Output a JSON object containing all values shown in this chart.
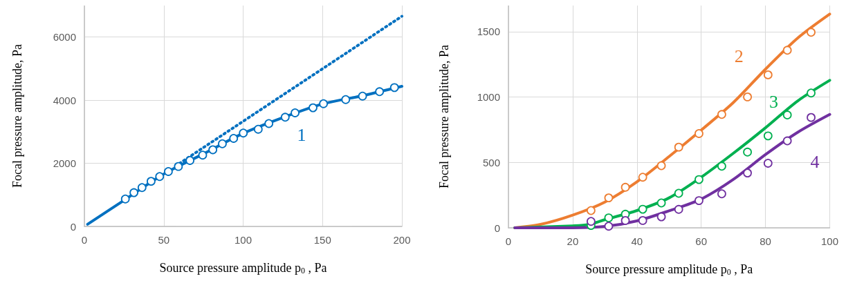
{
  "chart_data": [
    {
      "type": "line",
      "xlabel": "Source pressure amplitude p$_{0}$ , Pa",
      "ylabel": "Focal pressure amplitude, Pa",
      "xlim": [
        0,
        200
      ],
      "xticks": [
        0,
        50,
        100,
        150,
        200
      ],
      "ylim": [
        0,
        7000
      ],
      "yticks": [
        0,
        2000,
        4000,
        6000
      ],
      "grid": true,
      "series": [
        {
          "name": "1",
          "color": "#0070c0",
          "marker": "none",
          "line_style": "solid",
          "x": [
            2,
            25,
            50,
            75,
            100,
            125,
            150,
            175,
            200
          ],
          "values": [
            70,
            830,
            1660,
            2300,
            2950,
            3450,
            3880,
            4140,
            4440
          ]
        },
        {
          "color": "#0070c0",
          "marker": "none",
          "line_style": "dotted",
          "x": [
            60,
            200
          ],
          "values": [
            2000,
            6660
          ]
        },
        {
          "type": "scatter",
          "color": "#0070c0",
          "marker": "circle",
          "x": [
            25.8,
            31.2,
            36.3,
            42,
            47.4,
            52.9,
            59.2,
            66.5,
            74.5,
            80.9,
            86.9,
            94,
            100.1,
            109.5,
            116.2,
            126.5,
            132.7,
            144,
            150.6,
            164.6,
            175.2,
            185.9,
            195.3
          ],
          "values": [
            870,
            1070,
            1230,
            1430,
            1580,
            1740,
            1900,
            2090,
            2260,
            2430,
            2620,
            2790,
            2960,
            3080,
            3260,
            3460,
            3600,
            3760,
            3890,
            4020,
            4130,
            4270,
            4400
          ]
        }
      ]
    },
    {
      "type": "line",
      "xlabel": "Source pressure amplitude p$_{0}$ , Pa",
      "ylabel": "Focal pressure amplitude, Pa",
      "xlim": [
        0,
        100
      ],
      "xticks": [
        0,
        20,
        40,
        60,
        80,
        100
      ],
      "ylim": [
        0,
        1700
      ],
      "yticks": [
        0,
        500,
        1000,
        1500
      ],
      "grid": true,
      "series": [
        {
          "name": "2",
          "color": "#ed7d31",
          "marker": "none",
          "line_style": "solid",
          "x": [
            2,
            10,
            20,
            30,
            40,
            50,
            60,
            70,
            80,
            90,
            100
          ],
          "values": [
            0,
            26,
            97,
            197,
            352,
            545,
            747,
            958,
            1213,
            1451,
            1635
          ]
        },
        {
          "type": "scatter",
          "color": "#ed7d31",
          "marker": "circle",
          "x": [
            25.7,
            31.2,
            36.4,
            41.8,
            47.6,
            53,
            59.3,
            66.4,
            74.4,
            80.8,
            86.8,
            94.2
          ],
          "values": [
            132,
            229,
            310,
            387,
            475,
            617,
            721,
            867,
            1001,
            1170,
            1358,
            1495
          ]
        },
        {
          "name": "3",
          "color": "#00b050",
          "marker": "none",
          "line_style": "solid",
          "x": [
            2,
            20,
            25,
            30,
            40,
            50,
            60,
            70,
            80,
            90,
            100
          ],
          "values": [
            0,
            15,
            25,
            62,
            132,
            229,
            387,
            570,
            765,
            970,
            1128
          ]
        },
        {
          "type": "scatter",
          "color": "#00b050",
          "marker": "circle",
          "x": [
            25.7,
            31.2,
            36.4,
            41.8,
            47.6,
            53,
            59.3,
            66.4,
            74.4,
            80.8,
            86.8,
            94.2
          ],
          "values": [
            18,
            76,
            104,
            142,
            190,
            264,
            369,
            471,
            579,
            703,
            863,
            1031
          ]
        },
        {
          "name": "4",
          "color": "#7030a0",
          "marker": "none",
          "line_style": "solid",
          "x": [
            2,
            20,
            30,
            40,
            50,
            60,
            70,
            80,
            90,
            100
          ],
          "values": [
            0,
            0,
            10,
            53,
            130,
            220,
            370,
            560,
            730,
            867
          ]
        },
        {
          "type": "scatter",
          "color": "#7030a0",
          "marker": "circle",
          "x": [
            25.7,
            31.2,
            36.4,
            41.8,
            47.6,
            53,
            59.3,
            66.4,
            74.4,
            80.8,
            86.8,
            94.2
          ],
          "values": [
            49,
            12,
            56,
            56,
            84,
            141,
            208,
            260,
            419,
            494,
            665,
            844
          ]
        }
      ]
    }
  ]
}
